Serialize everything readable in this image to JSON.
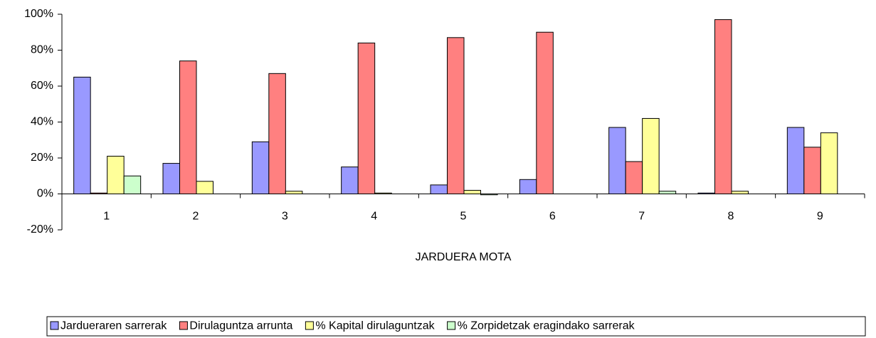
{
  "chart_data": {
    "type": "bar",
    "x_label": "JARDUERA MOTA",
    "categories": [
      "1",
      "2",
      "3",
      "4",
      "5",
      "6",
      "7",
      "8",
      "9"
    ],
    "series": [
      {
        "name": "Jardueraren sarrerak",
        "color": "#9999ff",
        "values": [
          65,
          17,
          29,
          15,
          5,
          8,
          37,
          0.5,
          37
        ]
      },
      {
        "name": "Dirulaguntza arrunta",
        "color": "#ff8080",
        "values": [
          0.5,
          74,
          67,
          84,
          87,
          90,
          18,
          97,
          26
        ]
      },
      {
        "name": "% Kapital dirulaguntzak",
        "color": "#ffff99",
        "values": [
          21,
          7,
          1.5,
          0.5,
          2,
          0,
          42,
          1.5,
          34
        ]
      },
      {
        "name": "% Zorpidetzak eragindako sarrerak",
        "color": "#ccffcc",
        "values": [
          10,
          0,
          0,
          0,
          -0.5,
          0,
          1.5,
          0,
          0
        ]
      }
    ],
    "ylim": [
      -20,
      100
    ],
    "yticks": [
      {
        "value": -20,
        "label": "-20%"
      },
      {
        "value": 0,
        "label": "0%"
      },
      {
        "value": 20,
        "label": "20%"
      },
      {
        "value": 40,
        "label": "40%"
      },
      {
        "value": 60,
        "label": "60%"
      },
      {
        "value": 80,
        "label": "80%"
      },
      {
        "value": 100,
        "label": "100%"
      }
    ],
    "legend": "bottom"
  }
}
